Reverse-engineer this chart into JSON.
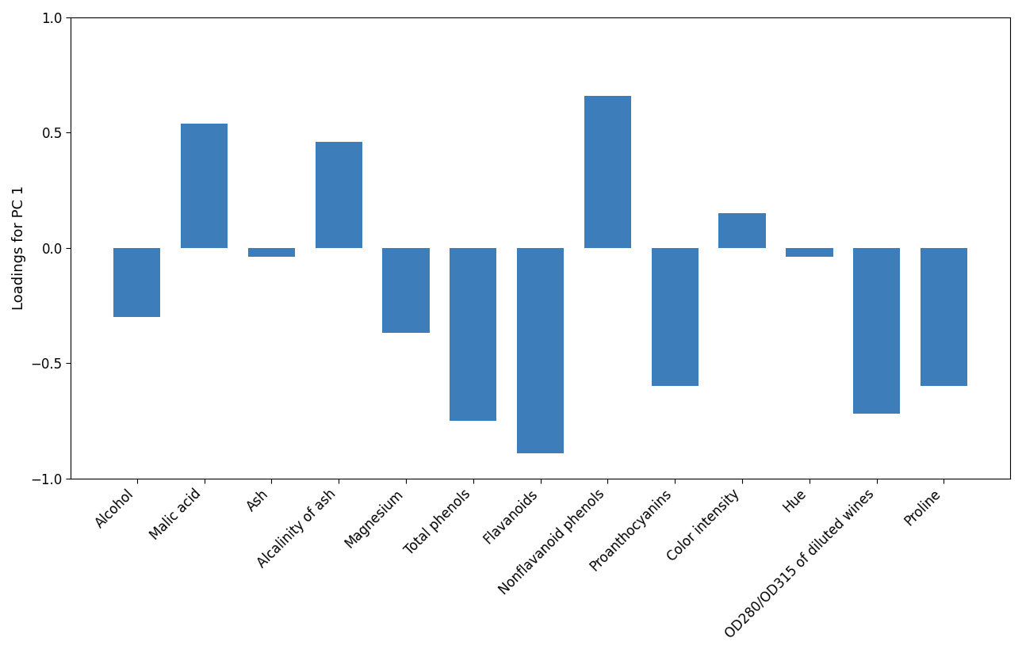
{
  "categories": [
    "Alcohol",
    "Malic acid",
    "Ash",
    "Alcalinity of ash",
    "Magnesium",
    "Total phenols",
    "Flavanoids",
    "Nonflavanoid phenols",
    "Proanthocyanins",
    "Color intensity",
    "Hue",
    "OD280/OD315 of diluted wines",
    "Proline"
  ],
  "loadings": [
    -0.3,
    0.54,
    -0.04,
    0.46,
    -0.37,
    -0.75,
    -0.89,
    0.66,
    -0.6,
    0.15,
    -0.04,
    -0.72,
    -0.6
  ],
  "bar_color": "#3d7dba",
  "ylabel": "Loadings for PC 1",
  "ylim": [
    -1.0,
    1.0
  ],
  "yticks": [
    -1.0,
    -0.5,
    0.0,
    0.5,
    1.0
  ],
  "label_rotation": 45,
  "label_ha": "right",
  "figsize": [
    12.89,
    8.24
  ],
  "dpi": 100
}
